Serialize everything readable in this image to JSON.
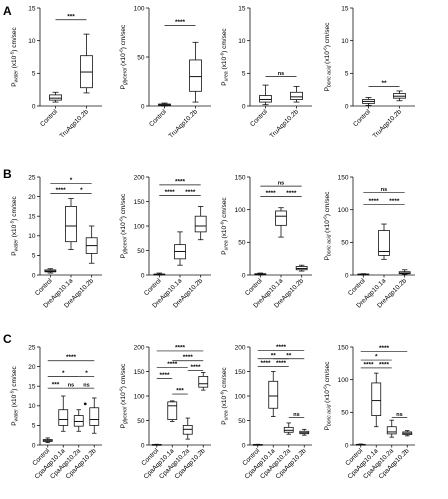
{
  "figure": {
    "row_letters": [
      "A",
      "B",
      "C"
    ]
  },
  "chart_data": [
    {
      "type": "box",
      "row": 0,
      "ylabel": "P_water (x10^-5) cm/sec",
      "categories": [
        "Control",
        "TruAqp10.2b"
      ],
      "ylim": [
        0,
        15
      ],
      "yticks": [
        0,
        5,
        10,
        15
      ],
      "boxes": [
        {
          "min": 0.6,
          "q1": 0.9,
          "median": 1.2,
          "q3": 1.7,
          "max": 2.1
        },
        {
          "min": 2.0,
          "q1": 2.8,
          "median": 5.2,
          "q3": 7.7,
          "max": 11.0
        }
      ],
      "sig": [
        {
          "label": "***",
          "from": 0,
          "to": 1,
          "y": 13.2
        }
      ]
    },
    {
      "type": "box",
      "row": 0,
      "ylabel": "P_glycerol (x10^-6) cm/sec",
      "categories": [
        "Control",
        "TruAqp10.2b"
      ],
      "ylim": [
        0,
        100
      ],
      "yticks": [
        0,
        50,
        100
      ],
      "boxes": [
        {
          "min": 0,
          "q1": 0.5,
          "median": 1,
          "q3": 2,
          "max": 3
        },
        {
          "min": 4,
          "q1": 15,
          "median": 30,
          "q3": 47,
          "max": 65
        }
      ],
      "sig": [
        {
          "label": "****",
          "from": 0,
          "to": 1,
          "y": 82
        }
      ]
    },
    {
      "type": "box",
      "row": 0,
      "ylabel": "P_urea (x10^-6) cm/sec",
      "categories": [
        "Control",
        "TruAqp10.2b"
      ],
      "ylim": [
        0,
        15
      ],
      "yticks": [
        0,
        5,
        10,
        15
      ],
      "boxes": [
        {
          "min": 0.2,
          "q1": 0.6,
          "median": 1.0,
          "q3": 1.6,
          "max": 3.2
        },
        {
          "min": 0.6,
          "q1": 1.0,
          "median": 1.4,
          "q3": 2.1,
          "max": 3.0
        }
      ],
      "sig": [
        {
          "label": "ns",
          "from": 0,
          "to": 1,
          "y": 4.5
        }
      ]
    },
    {
      "type": "box",
      "row": 0,
      "ylabel": "P_boric acid (x10^-6) cm/sec",
      "categories": [
        "Control",
        "TruAqp10.2b"
      ],
      "ylim": [
        0,
        15
      ],
      "yticks": [
        0,
        5,
        10,
        15
      ],
      "boxes": [
        {
          "min": 0.1,
          "q1": 0.4,
          "median": 0.7,
          "q3": 1.0,
          "max": 1.3
        },
        {
          "min": 0.8,
          "q1": 1.2,
          "median": 1.5,
          "q3": 1.9,
          "max": 2.3
        }
      ],
      "sig": [
        {
          "label": "**",
          "from": 0,
          "to": 1,
          "y": 3.0
        }
      ]
    },
    {
      "type": "box",
      "row": 1,
      "ylabel": "P_water (x10^-5) cm/sec",
      "categories": [
        "Control",
        "DreAqp10.1a",
        "DreAqp10.2b"
      ],
      "ylim": [
        0,
        25
      ],
      "yticks": [
        0,
        5,
        10,
        15,
        20,
        25
      ],
      "boxes": [
        {
          "min": 0.5,
          "q1": 0.8,
          "median": 1.0,
          "q3": 1.3,
          "max": 1.6
        },
        {
          "min": 6.5,
          "q1": 8.5,
          "median": 12.5,
          "q3": 17.5,
          "max": 19.5
        },
        {
          "min": 3.0,
          "q1": 5.5,
          "median": 7.5,
          "q3": 9.5,
          "max": 12.5
        }
      ],
      "sig": [
        {
          "label": "****",
          "from": 0,
          "to": 1,
          "y": 20.8
        },
        {
          "label": "*",
          "from": 1,
          "to": 2,
          "y": 20.8
        },
        {
          "label": "*",
          "from": 0,
          "to": 2,
          "y": 23.3
        }
      ]
    },
    {
      "type": "box",
      "row": 1,
      "ylabel": "P_glycerol (x10^-6) cm/sec",
      "categories": [
        "Control",
        "DreAqp10.1a",
        "DreAqp10.2b"
      ],
      "ylim": [
        0,
        200
      ],
      "yticks": [
        0,
        50,
        100,
        150,
        200
      ],
      "boxes": [
        {
          "min": 0,
          "q1": 0.5,
          "median": 1,
          "q3": 2,
          "max": 4
        },
        {
          "min": 20,
          "q1": 33,
          "median": 48,
          "q3": 62,
          "max": 88
        },
        {
          "min": 72,
          "q1": 88,
          "median": 100,
          "q3": 120,
          "max": 140
        }
      ],
      "sig": [
        {
          "label": "****",
          "from": 0,
          "to": 1,
          "y": 162
        },
        {
          "label": "****",
          "from": 1,
          "to": 2,
          "y": 162
        },
        {
          "label": "****",
          "from": 0,
          "to": 2,
          "y": 184
        }
      ]
    },
    {
      "type": "box",
      "row": 1,
      "ylabel": "P_urea (x10^-6) cm/sec",
      "categories": [
        "Control",
        "DreAqp10.1a",
        "DreAqp10.2b"
      ],
      "ylim": [
        0,
        150
      ],
      "yticks": [
        0,
        50,
        100,
        150
      ],
      "boxes": [
        {
          "min": 0,
          "q1": 0.5,
          "median": 1,
          "q3": 2,
          "max": 3
        },
        {
          "min": 58,
          "q1": 76,
          "median": 90,
          "q3": 98,
          "max": 103
        },
        {
          "min": 6,
          "q1": 8,
          "median": 10,
          "q3": 13,
          "max": 15
        }
      ],
      "sig": [
        {
          "label": "****",
          "from": 0,
          "to": 1,
          "y": 120
        },
        {
          "label": "****",
          "from": 1,
          "to": 2,
          "y": 120
        },
        {
          "label": "ns",
          "from": 0,
          "to": 2,
          "y": 136
        }
      ]
    },
    {
      "type": "box",
      "row": 1,
      "ylabel": "P_boric acid (x10^-6) cm/sec",
      "categories": [
        "Control",
        "DreAqp10.1a",
        "DreAqp10.2b"
      ],
      "ylim": [
        0,
        150
      ],
      "yticks": [
        0,
        50,
        100,
        150
      ],
      "boxes": [
        {
          "min": 0,
          "q1": 0.5,
          "median": 1,
          "q3": 1.5,
          "max": 2
        },
        {
          "min": 24,
          "q1": 30,
          "median": 36,
          "q3": 68,
          "max": 78
        },
        {
          "min": 1,
          "q1": 2,
          "median": 3,
          "q3": 5,
          "max": 8
        }
      ],
      "sig": [
        {
          "label": "****",
          "from": 0,
          "to": 1,
          "y": 108
        },
        {
          "label": "****",
          "from": 1,
          "to": 2,
          "y": 108
        },
        {
          "label": "ns",
          "from": 0,
          "to": 2,
          "y": 126
        }
      ]
    },
    {
      "type": "box",
      "row": 2,
      "ylabel": "P_water (x10^-5) cm/sec",
      "categories": [
        "Control",
        "CpaAqp10.1a",
        "CpaAqp10.2a",
        "CpaAqp10.2b"
      ],
      "ylim": [
        0,
        25
      ],
      "yticks": [
        0,
        5,
        10,
        15,
        20,
        25
      ],
      "boxes": [
        {
          "min": 0.6,
          "q1": 0.9,
          "median": 1.1,
          "q3": 1.4,
          "max": 1.8
        },
        {
          "min": 3.5,
          "q1": 5.0,
          "median": 6.5,
          "q3": 9.0,
          "max": 12.5
        },
        {
          "min": 3.5,
          "q1": 4.8,
          "median": 6.0,
          "q3": 7.5,
          "max": 9.0
        },
        {
          "min": 3.0,
          "q1": 5.0,
          "median": 6.5,
          "q3": 9.5,
          "max": 12.0
        }
      ],
      "outliers": [
        {
          "box": 2,
          "value": 10.5
        }
      ],
      "sig": [
        {
          "label": "***",
          "from": 0,
          "to": 1,
          "y": 14.5
        },
        {
          "label": "ns",
          "from": 1,
          "to": 2,
          "y": 14.5
        },
        {
          "label": "ns",
          "from": 2,
          "to": 3,
          "y": 14.5
        },
        {
          "label": "*",
          "from": 0,
          "to": 2,
          "y": 17.5
        },
        {
          "label": "*",
          "from": 2,
          "to": 3,
          "y": 17.5
        },
        {
          "label": "****",
          "from": 0,
          "to": 3,
          "y": 21.5
        }
      ]
    },
    {
      "type": "box",
      "row": 2,
      "ylabel": "P_glycerol (x10^-6) cm/sec",
      "categories": [
        "Control",
        "CpaAqp10.1a",
        "CpaAqp10.2a",
        "CpaAqp10.2b"
      ],
      "ylim": [
        0,
        200
      ],
      "yticks": [
        0,
        50,
        100,
        150,
        200
      ],
      "boxes": [
        {
          "min": 0,
          "q1": 0.3,
          "median": 0.6,
          "q3": 1,
          "max": 1.5
        },
        {
          "min": 48,
          "q1": 52,
          "median": 80,
          "q3": 88,
          "max": 90
        },
        {
          "min": 12,
          "q1": 22,
          "median": 32,
          "q3": 40,
          "max": 55
        },
        {
          "min": 112,
          "q1": 118,
          "median": 125,
          "q3": 140,
          "max": 148
        }
      ],
      "sig": [
        {
          "label": "****",
          "from": 0,
          "to": 1,
          "y": 136
        },
        {
          "label": "***",
          "from": 1,
          "to": 2,
          "y": 104
        },
        {
          "label": "****",
          "from": 2,
          "to": 3,
          "y": 152
        },
        {
          "label": "****",
          "from": 0,
          "to": 2,
          "y": 158
        },
        {
          "label": "****",
          "from": 1,
          "to": 3,
          "y": 172
        },
        {
          "label": "****",
          "from": 0,
          "to": 3,
          "y": 192
        }
      ]
    },
    {
      "type": "box",
      "row": 2,
      "ylabel": "P_urea (x10^-6) cm/sec",
      "categories": [
        "Control",
        "CpaAqp10.1a",
        "CpaAqp10.2a",
        "CpaAqp10.2b"
      ],
      "ylim": [
        0,
        200
      ],
      "yticks": [
        0,
        50,
        100,
        150,
        200
      ],
      "boxes": [
        {
          "min": 0,
          "q1": 0.3,
          "median": 0.6,
          "q3": 1,
          "max": 1.5
        },
        {
          "min": 58,
          "q1": 75,
          "median": 100,
          "q3": 130,
          "max": 150
        },
        {
          "min": 22,
          "q1": 26,
          "median": 30,
          "q3": 36,
          "max": 45
        },
        {
          "min": 20,
          "q1": 23,
          "median": 25,
          "q3": 28,
          "max": 32
        }
      ],
      "sig": [
        {
          "label": "****",
          "from": 0,
          "to": 1,
          "y": 160
        },
        {
          "label": "****",
          "from": 1,
          "to": 2,
          "y": 160
        },
        {
          "label": "ns",
          "from": 2,
          "to": 3,
          "y": 56
        },
        {
          "label": "**",
          "from": 0,
          "to": 2,
          "y": 176
        },
        {
          "label": "**",
          "from": 1,
          "to": 3,
          "y": 176
        },
        {
          "label": "****",
          "from": 0,
          "to": 3,
          "y": 193
        }
      ]
    },
    {
      "type": "box",
      "row": 2,
      "ylabel": "P_boric acid (x10^-6) cm/sec",
      "categories": [
        "Control",
        "CpaAqp10.1a",
        "CpaAqp10.2a",
        "CpaAqp10.2b"
      ],
      "ylim": [
        0,
        150
      ],
      "yticks": [
        0,
        50,
        100,
        150
      ],
      "boxes": [
        {
          "min": 0,
          "q1": 0.3,
          "median": 0.6,
          "q3": 1,
          "max": 1.5
        },
        {
          "min": 28,
          "q1": 45,
          "median": 68,
          "q3": 95,
          "max": 110
        },
        {
          "min": 12,
          "q1": 17,
          "median": 20,
          "q3": 28,
          "max": 38
        },
        {
          "min": 14,
          "q1": 16,
          "median": 18,
          "q3": 20,
          "max": 22
        }
      ],
      "sig": [
        {
          "label": "****",
          "from": 0,
          "to": 1,
          "y": 118
        },
        {
          "label": "****",
          "from": 1,
          "to": 2,
          "y": 118
        },
        {
          "label": "ns",
          "from": 2,
          "to": 3,
          "y": 42
        },
        {
          "label": "*",
          "from": 0,
          "to": 2,
          "y": 130
        },
        {
          "label": "****",
          "from": 0,
          "to": 3,
          "y": 143
        }
      ]
    }
  ]
}
